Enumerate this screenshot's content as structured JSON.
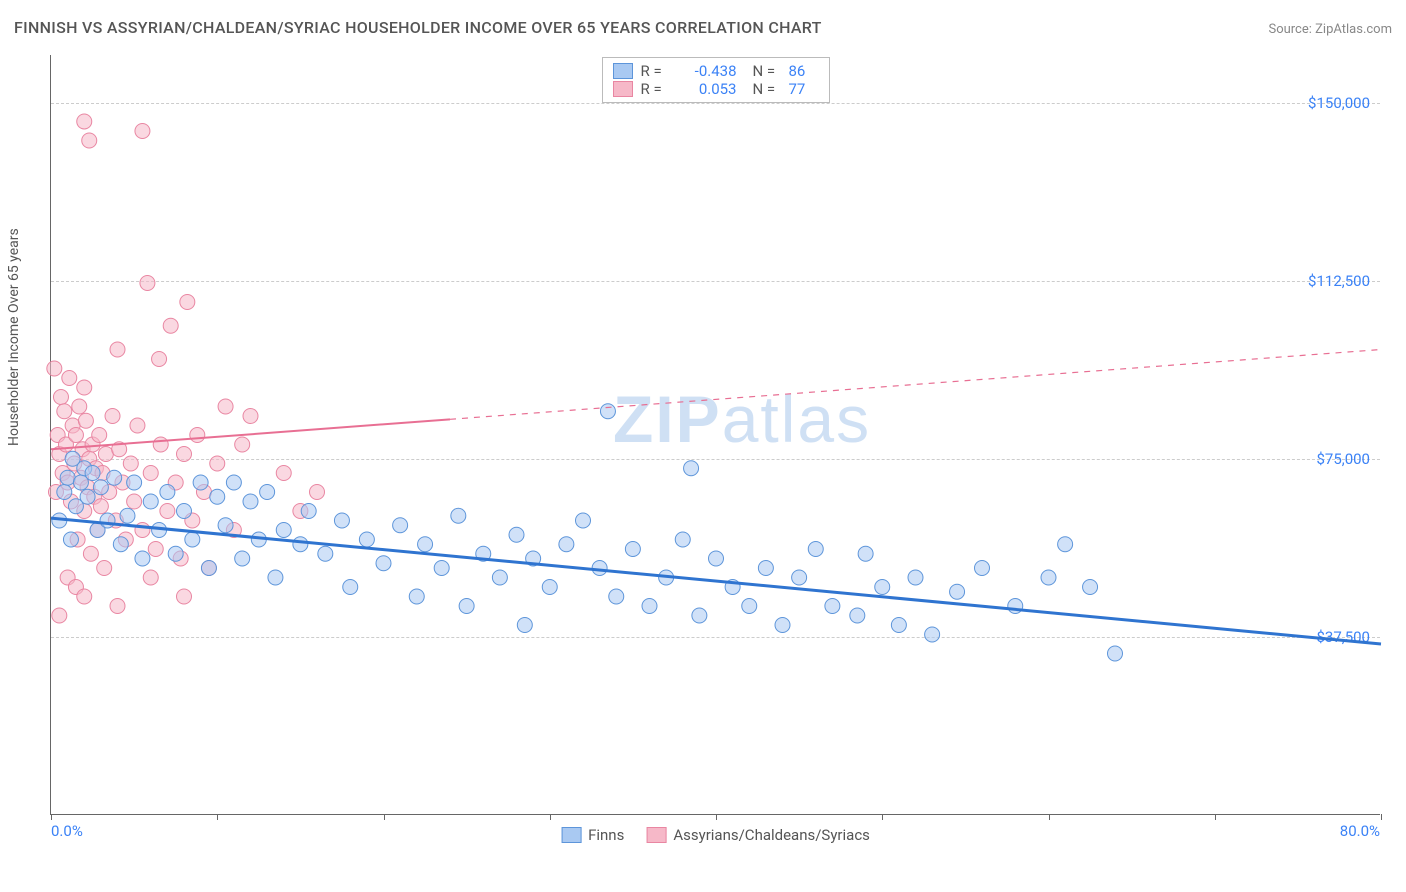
{
  "title": "FINNISH VS ASSYRIAN/CHALDEAN/SYRIAC HOUSEHOLDER INCOME OVER 65 YEARS CORRELATION CHART",
  "source": "Source: ZipAtlas.com",
  "watermark": "ZIPatlas",
  "y_axis_label": "Householder Income Over 65 years",
  "chart": {
    "type": "scatter",
    "xlim": [
      0,
      80
    ],
    "ylim": [
      0,
      160000
    ],
    "x_min_label": "0.0%",
    "x_max_label": "80.0%",
    "x_ticks": [
      0,
      10,
      20,
      30,
      40,
      50,
      60,
      70,
      80
    ],
    "y_ticks": [
      {
        "v": 37500,
        "label": "$37,500"
      },
      {
        "v": 75000,
        "label": "$75,000"
      },
      {
        "v": 112500,
        "label": "$112,500"
      },
      {
        "v": 150000,
        "label": "$150,000"
      }
    ],
    "background_color": "#ffffff",
    "grid_color": "#cccccc",
    "axis_color": "#666666",
    "marker_radius": 7.5,
    "marker_opacity": 0.55,
    "series": [
      {
        "name": "Finns",
        "legend_label": "Finns",
        "fill_color": "#a9c9f2",
        "stroke_color": "#5d95da",
        "line_color": "#2f74d0",
        "line_width": 3,
        "line_dash": "none",
        "R": "-0.438",
        "N": "86",
        "trend": {
          "x1": 0,
          "y1": 62500,
          "x2": 80,
          "y2": 36000
        },
        "points": [
          [
            0.5,
            62000
          ],
          [
            0.8,
            68000
          ],
          [
            1.0,
            71000
          ],
          [
            1.2,
            58000
          ],
          [
            1.3,
            75000
          ],
          [
            1.5,
            65000
          ],
          [
            1.8,
            70000
          ],
          [
            2.0,
            73000
          ],
          [
            2.2,
            67000
          ],
          [
            2.5,
            72000
          ],
          [
            2.8,
            60000
          ],
          [
            3.0,
            69000
          ],
          [
            3.4,
            62000
          ],
          [
            3.8,
            71000
          ],
          [
            4.2,
            57000
          ],
          [
            4.6,
            63000
          ],
          [
            5.0,
            70000
          ],
          [
            5.5,
            54000
          ],
          [
            6.0,
            66000
          ],
          [
            6.5,
            60000
          ],
          [
            7.0,
            68000
          ],
          [
            7.5,
            55000
          ],
          [
            8.0,
            64000
          ],
          [
            8.5,
            58000
          ],
          [
            9.0,
            70000
          ],
          [
            9.5,
            52000
          ],
          [
            10.0,
            67000
          ],
          [
            10.5,
            61000
          ],
          [
            11.0,
            70000
          ],
          [
            11.5,
            54000
          ],
          [
            12.0,
            66000
          ],
          [
            12.5,
            58000
          ],
          [
            13.0,
            68000
          ],
          [
            13.5,
            50000
          ],
          [
            14.0,
            60000
          ],
          [
            15.0,
            57000
          ],
          [
            15.5,
            64000
          ],
          [
            16.5,
            55000
          ],
          [
            17.5,
            62000
          ],
          [
            18.0,
            48000
          ],
          [
            19.0,
            58000
          ],
          [
            20.0,
            53000
          ],
          [
            21.0,
            61000
          ],
          [
            22.0,
            46000
          ],
          [
            22.5,
            57000
          ],
          [
            23.5,
            52000
          ],
          [
            24.5,
            63000
          ],
          [
            25.0,
            44000
          ],
          [
            26.0,
            55000
          ],
          [
            27.0,
            50000
          ],
          [
            28.0,
            59000
          ],
          [
            28.5,
            40000
          ],
          [
            29.0,
            54000
          ],
          [
            30.0,
            48000
          ],
          [
            31.0,
            57000
          ],
          [
            32.0,
            62000
          ],
          [
            33.0,
            52000
          ],
          [
            33.5,
            85000
          ],
          [
            34.0,
            46000
          ],
          [
            35.0,
            56000
          ],
          [
            36.0,
            44000
          ],
          [
            37.0,
            50000
          ],
          [
            38.0,
            58000
          ],
          [
            38.5,
            73000
          ],
          [
            39.0,
            42000
          ],
          [
            40.0,
            54000
          ],
          [
            41.0,
            48000
          ],
          [
            42.0,
            44000
          ],
          [
            43.0,
            52000
          ],
          [
            44.0,
            40000
          ],
          [
            45.0,
            50000
          ],
          [
            46.0,
            56000
          ],
          [
            47.0,
            44000
          ],
          [
            48.5,
            42000
          ],
          [
            49.0,
            55000
          ],
          [
            50.0,
            48000
          ],
          [
            51.0,
            40000
          ],
          [
            52.0,
            50000
          ],
          [
            53.0,
            38000
          ],
          [
            54.5,
            47000
          ],
          [
            56.0,
            52000
          ],
          [
            58.0,
            44000
          ],
          [
            60.0,
            50000
          ],
          [
            61.0,
            57000
          ],
          [
            62.5,
            48000
          ],
          [
            64.0,
            34000
          ]
        ]
      },
      {
        "name": "Assyrians/Chaldeans/Syriacs",
        "legend_label": "Assyrians/Chaldeans/Syriacs",
        "fill_color": "#f6b8c8",
        "stroke_color": "#e986a2",
        "line_color": "#e86f93",
        "line_width": 2,
        "line_dash": "6,6",
        "solid_until_x": 24,
        "R": "0.053",
        "N": "77",
        "trend": {
          "x1": 0,
          "y1": 77000,
          "x2": 80,
          "y2": 98000
        },
        "points": [
          [
            0.2,
            94000
          ],
          [
            0.3,
            68000
          ],
          [
            0.4,
            80000
          ],
          [
            0.5,
            76000
          ],
          [
            0.6,
            88000
          ],
          [
            0.7,
            72000
          ],
          [
            0.8,
            85000
          ],
          [
            0.9,
            78000
          ],
          [
            1.0,
            70000
          ],
          [
            1.1,
            92000
          ],
          [
            1.2,
            66000
          ],
          [
            1.3,
            82000
          ],
          [
            1.4,
            74000
          ],
          [
            1.5,
            80000
          ],
          [
            1.6,
            58000
          ],
          [
            1.7,
            86000
          ],
          [
            1.8,
            71000
          ],
          [
            1.9,
            77000
          ],
          [
            2.0,
            64000
          ],
          [
            2.1,
            83000
          ],
          [
            2.2,
            69000
          ],
          [
            2.3,
            75000
          ],
          [
            2.4,
            55000
          ],
          [
            2.5,
            78000
          ],
          [
            2.6,
            67000
          ],
          [
            2.7,
            73000
          ],
          [
            2.8,
            60000
          ],
          [
            2.9,
            80000
          ],
          [
            3.0,
            65000
          ],
          [
            3.1,
            72000
          ],
          [
            3.2,
            52000
          ],
          [
            3.3,
            76000
          ],
          [
            3.5,
            68000
          ],
          [
            3.7,
            84000
          ],
          [
            3.9,
            62000
          ],
          [
            4.1,
            77000
          ],
          [
            4.3,
            70000
          ],
          [
            4.5,
            58000
          ],
          [
            4.8,
            74000
          ],
          [
            5.0,
            66000
          ],
          [
            5.2,
            82000
          ],
          [
            5.5,
            60000
          ],
          [
            5.8,
            112000
          ],
          [
            6.0,
            72000
          ],
          [
            6.3,
            56000
          ],
          [
            6.6,
            78000
          ],
          [
            7.0,
            64000
          ],
          [
            7.2,
            103000
          ],
          [
            7.5,
            70000
          ],
          [
            7.8,
            54000
          ],
          [
            8.0,
            76000
          ],
          [
            8.2,
            108000
          ],
          [
            8.5,
            62000
          ],
          [
            8.8,
            80000
          ],
          [
            9.2,
            68000
          ],
          [
            9.5,
            52000
          ],
          [
            10.0,
            74000
          ],
          [
            10.5,
            86000
          ],
          [
            11.0,
            60000
          ],
          [
            2.0,
            146000
          ],
          [
            2.3,
            142000
          ],
          [
            5.5,
            144000
          ],
          [
            2.0,
            90000
          ],
          [
            0.5,
            42000
          ],
          [
            1.0,
            50000
          ],
          [
            1.5,
            48000
          ],
          [
            2.0,
            46000
          ],
          [
            4.0,
            44000
          ],
          [
            6.0,
            50000
          ],
          [
            8.0,
            46000
          ],
          [
            11.5,
            78000
          ],
          [
            12.0,
            84000
          ],
          [
            14.0,
            72000
          ],
          [
            15.0,
            64000
          ],
          [
            16.0,
            68000
          ],
          [
            6.5,
            96000
          ],
          [
            4.0,
            98000
          ]
        ]
      }
    ]
  }
}
